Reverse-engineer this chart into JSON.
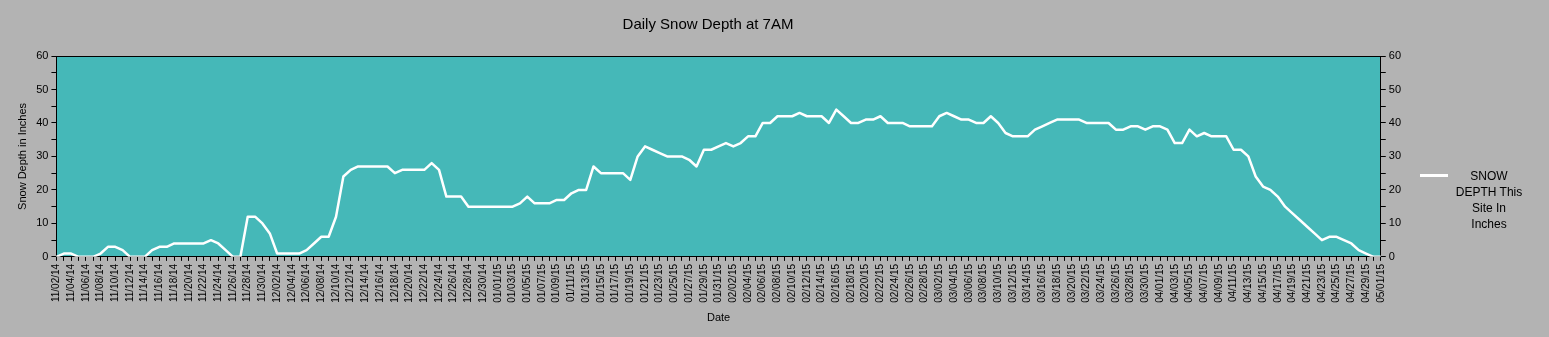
{
  "chart_data": {
    "type": "line",
    "title": "Daily Snow Depth at 7AM",
    "xlabel": "Date",
    "ylabel": "Snow Depth in Inches",
    "categories": [
      "11/02/14",
      null,
      "11/04/14",
      null,
      "11/06/14",
      null,
      "11/08/14",
      null,
      "11/10/14",
      null,
      "11/12/14",
      null,
      "11/14/14",
      null,
      "11/16/14",
      null,
      "11/18/14",
      null,
      "11/20/14",
      null,
      "11/22/14",
      null,
      "11/24/14",
      null,
      "11/26/14",
      null,
      "11/28/14",
      null,
      "11/30/14",
      null,
      "12/02/14",
      null,
      "12/04/14",
      null,
      "12/06/14",
      null,
      "12/08/14",
      null,
      "12/10/14",
      null,
      "12/12/14",
      null,
      "12/14/14",
      null,
      "12/16/14",
      null,
      "12/18/14",
      null,
      "12/20/14",
      null,
      "12/22/14",
      null,
      "12/24/14",
      null,
      "12/26/14",
      null,
      "12/28/14",
      null,
      "12/30/14",
      null,
      "01/01/15",
      null,
      "01/03/15",
      null,
      "01/05/15",
      null,
      "01/07/15",
      null,
      "01/09/15",
      null,
      "01/11/15",
      null,
      "01/13/15",
      null,
      "01/15/15",
      null,
      "01/17/15",
      null,
      "01/19/15",
      null,
      "01/21/15",
      null,
      "01/23/15",
      null,
      "01/25/15",
      null,
      "01/27/15",
      null,
      "01/29/15",
      null,
      "01/31/15",
      null,
      "02/02/15",
      null,
      "02/04/15",
      null,
      "02/06/15",
      null,
      "02/08/15",
      null,
      "02/10/15",
      null,
      "02/12/15",
      null,
      "02/14/15",
      null,
      "02/16/15",
      null,
      "02/18/15",
      null,
      "02/20/15",
      null,
      "02/22/15",
      null,
      "02/24/15",
      null,
      "02/26/15",
      null,
      "02/28/15",
      null,
      "03/02/15",
      null,
      "03/04/15",
      null,
      "03/06/15",
      null,
      "03/08/15",
      null,
      "03/10/15",
      null,
      "03/12/15",
      null,
      "03/14/15",
      null,
      "03/16/15",
      null,
      "03/18/15",
      null,
      "03/20/15",
      null,
      "03/22/15",
      null,
      "03/24/15",
      null,
      "03/26/15",
      null,
      "03/28/15",
      null,
      "03/30/15",
      null,
      "04/01/15",
      null,
      "04/03/15",
      null,
      "04/05/15",
      null,
      "04/07/15",
      null,
      "04/09/15",
      null,
      "04/11/15",
      null,
      "04/13/15",
      null,
      "04/15/15",
      null,
      "04/17/15",
      null,
      "04/19/15",
      null,
      "04/21/15",
      null,
      "04/23/15",
      null,
      "04/25/15",
      null,
      "04/27/15",
      null,
      "04/29/15",
      null,
      "05/01/15"
    ],
    "series": [
      {
        "name": "SNOW DEPTH This Site In Inches",
        "color": "#ffffff",
        "values": [
          0,
          1,
          1,
          0,
          0,
          0,
          1,
          3,
          3,
          2,
          0,
          0,
          0,
          2,
          3,
          3,
          4,
          4,
          4,
          4,
          4,
          5,
          4,
          2,
          0,
          0,
          12,
          12,
          10,
          7,
          1,
          1,
          1,
          1,
          2,
          4,
          6,
          6,
          12,
          24,
          26,
          27,
          27,
          27,
          27,
          27,
          25,
          26,
          26,
          26,
          26,
          28,
          26,
          18,
          18,
          18,
          15,
          15,
          15,
          15,
          15,
          15,
          15,
          16,
          18,
          16,
          16,
          16,
          17,
          17,
          19,
          20,
          20,
          27,
          25,
          25,
          25,
          25,
          23,
          30,
          33,
          32,
          31,
          30,
          30,
          30,
          29,
          27,
          32,
          32,
          33,
          34,
          33,
          34,
          36,
          36,
          40,
          40,
          42,
          42,
          42,
          43,
          42,
          42,
          42,
          40,
          44,
          42,
          40,
          40,
          41,
          41,
          42,
          40,
          40,
          40,
          39,
          39,
          39,
          39,
          42,
          43,
          42,
          41,
          41,
          40,
          40,
          42,
          40,
          37,
          36,
          36,
          36,
          38,
          39,
          40,
          41,
          41,
          41,
          41,
          40,
          40,
          40,
          40,
          38,
          38,
          39,
          39,
          38,
          39,
          39,
          38,
          34,
          34,
          38,
          36,
          37,
          36,
          36,
          36,
          32,
          32,
          30,
          24,
          21,
          20,
          18,
          15,
          13,
          11,
          9,
          7,
          5,
          6,
          6,
          5,
          4,
          2,
          1,
          0,
          0
        ]
      }
    ],
    "ylim": [
      0,
      60
    ],
    "yticks": [
      0,
      {
        "value": 5,
        "label": null
      },
      10,
      {
        "value": 15,
        "label": null
      },
      20,
      {
        "value": 25,
        "label": null
      },
      30,
      {
        "value": 35,
        "label": null
      },
      40,
      {
        "value": 45,
        "label": null
      },
      50,
      {
        "value": 55,
        "label": null
      },
      60
    ],
    "y2lim": [
      0,
      60
    ],
    "y2ticks": [
      0,
      {
        "value": 5,
        "label": null
      },
      10,
      {
        "value": 15,
        "label": null
      },
      20,
      {
        "value": 25,
        "label": null
      },
      30,
      {
        "value": 35,
        "label": null
      },
      40,
      {
        "value": 45,
        "label": null
      },
      50,
      {
        "value": 55,
        "label": null
      },
      60
    ],
    "grid": false,
    "legend": "right",
    "marker": "none",
    "line_style": "solid"
  }
}
